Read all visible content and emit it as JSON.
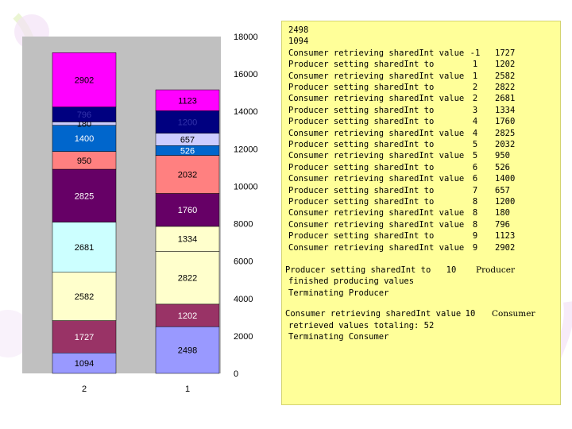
{
  "chart_data": {
    "type": "bar",
    "stacked": true,
    "categories": [
      "2",
      "1"
    ],
    "ylim": [
      0,
      18000
    ],
    "y_ticks": [
      0,
      2000,
      4000,
      6000,
      8000,
      10000,
      12000,
      14000,
      16000,
      18000
    ],
    "grid": false,
    "legend": "none",
    "stacks": [
      {
        "category": "2",
        "segments": [
          {
            "value": 1094,
            "color": "#9999ff"
          },
          {
            "value": 1727,
            "color": "#993366"
          },
          {
            "value": 2582,
            "color": "#ffffcc"
          },
          {
            "value": 2681,
            "color": "#ccffff"
          },
          {
            "value": 2825,
            "color": "#660066"
          },
          {
            "value": 950,
            "color": "#ff8080"
          },
          {
            "value": 1400,
            "color": "#0066cc"
          },
          {
            "value": 180,
            "color": "#ccccff"
          },
          {
            "value": 796,
            "color": "#000080"
          },
          {
            "value": 2902,
            "color": "#ff00ff"
          }
        ]
      },
      {
        "category": "1",
        "segments": [
          {
            "value": 2498,
            "color": "#9999ff"
          },
          {
            "value": 1202,
            "color": "#993366"
          },
          {
            "value": 2822,
            "color": "#ffffcc"
          },
          {
            "value": 1334,
            "color": "#ffffcc"
          },
          {
            "value": 1760,
            "color": "#660066"
          },
          {
            "value": 2032,
            "color": "#ff8080"
          },
          {
            "value": 526,
            "color": "#0066cc"
          },
          {
            "value": 657,
            "color": "#ccccff"
          },
          {
            "value": 1200,
            "color": "#000080"
          },
          {
            "value": 1123,
            "color": "#ff00ff"
          }
        ]
      }
    ]
  },
  "log": {
    "header": [
      "2498",
      "1094"
    ],
    "rows": [
      {
        "msg": "Consumer retrieving sharedInt value",
        "thread": "-1",
        "value": "1727"
      },
      {
        "msg": "Producer setting sharedInt to",
        "thread": "1",
        "value": "1202"
      },
      {
        "msg": "Consumer retrieving sharedInt value",
        "thread": "1",
        "value": "2582"
      },
      {
        "msg": "Producer setting sharedInt to",
        "thread": "2",
        "value": "2822"
      },
      {
        "msg": "Consumer retrieving sharedInt value",
        "thread": "2",
        "value": "2681"
      },
      {
        "msg": "Producer setting sharedInt to",
        "thread": "3",
        "value": "1334"
      },
      {
        "msg": "Producer setting sharedInt to",
        "thread": "4",
        "value": "1760"
      },
      {
        "msg": "Consumer retrieving sharedInt value",
        "thread": "4",
        "value": "2825"
      },
      {
        "msg": "Producer setting sharedInt to",
        "thread": "5",
        "value": "2032"
      },
      {
        "msg": "Consumer retrieving sharedInt value",
        "thread": "5",
        "value": "950"
      },
      {
        "msg": "Producer setting sharedInt to",
        "thread": "6",
        "value": "526"
      },
      {
        "msg": "Consumer retrieving sharedInt value",
        "thread": "6",
        "value": "1400"
      },
      {
        "msg": "Producer setting sharedInt to",
        "thread": "7",
        "value": "657"
      },
      {
        "msg": "Producer setting sharedInt to",
        "thread": "8",
        "value": "1200"
      },
      {
        "msg": "Consumer retrieving sharedInt value",
        "thread": "8",
        "value": "180"
      },
      {
        "msg": "Consumer retrieving sharedInt value",
        "thread": "8",
        "value": "796"
      },
      {
        "msg": "Producer setting sharedInt to",
        "thread": "9",
        "value": "1123"
      },
      {
        "msg": "Consumer retrieving sharedInt value",
        "thread": "9",
        "value": "2902"
      }
    ],
    "producer_block": {
      "line1": "Producer setting sharedInt to",
      "number": "10",
      "label": "Producer",
      "line2": "finished producing values",
      "line3": "Terminating Producer"
    },
    "consumer_block": {
      "line1": "Consumer retrieving sharedInt value",
      "number": "10",
      "label": "Consumer",
      "line2": "retrieved values totaling: 52",
      "line3": "Terminating Consumer"
    }
  }
}
